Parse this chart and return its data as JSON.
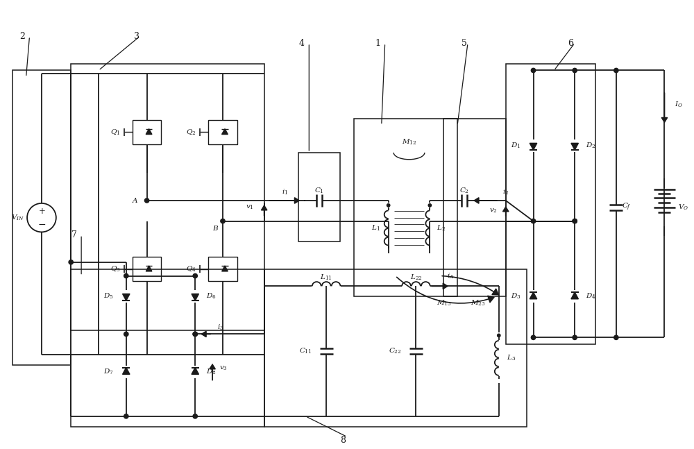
{
  "bg_color": "#ffffff",
  "lc": "#1a1a1a",
  "lw": 1.3,
  "figsize": [
    10.0,
    6.47
  ],
  "dpi": 100
}
